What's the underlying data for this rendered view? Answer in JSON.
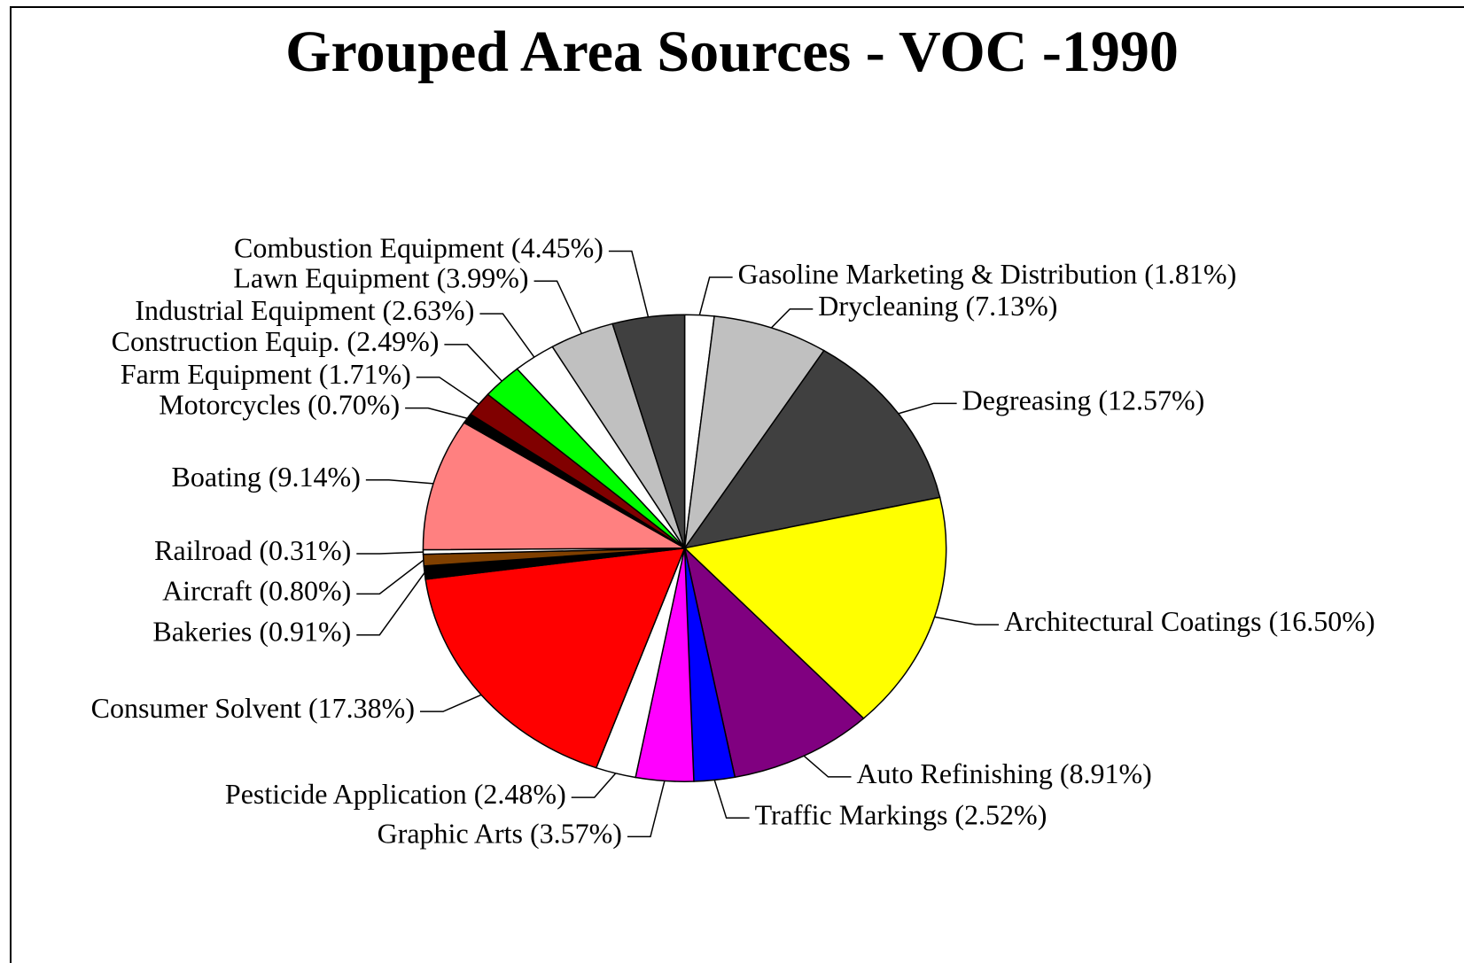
{
  "chart_data": {
    "type": "pie",
    "title": "Grouped Area Sources - VOC -1990",
    "categories": [
      "Gasoline Marketing & Distribution",
      "Drycleaning",
      "Degreasing",
      "Architectural Coatings",
      "Auto Refinishing",
      "Traffic Markings",
      "Graphic Arts",
      "Pesticide Application",
      "Consumer Solvent",
      "Bakeries",
      "Aircraft",
      "Railroad",
      "Boating",
      "Motorcycles",
      "Farm Equipment",
      "Construction Equip.",
      "Industrial Equipment",
      "Lawn Equipment",
      "Combustion Equipment"
    ],
    "values": [
      1.81,
      7.13,
      12.57,
      16.5,
      8.91,
      2.52,
      3.57,
      2.48,
      17.38,
      0.91,
      0.8,
      0.31,
      9.14,
      0.7,
      1.71,
      2.49,
      2.63,
      3.99,
      4.45
    ],
    "value_labels": [
      "(1.81%)",
      "(7.13%)",
      "(12.57%)",
      "(16.50%)",
      "(8.91%)",
      "(2.52%)",
      "(3.57%)",
      "(2.48%)",
      "(17.38%)",
      "(0.91%)",
      "(0.80%)",
      "(0.31%)",
      "(9.14%)",
      "(0.70%)",
      "(1.71%)",
      "(2.49%)",
      "(2.63%)",
      "(3.99%)",
      "(4.45%)"
    ],
    "colors": [
      "#ffffff",
      "#c0c0c0",
      "#404040",
      "#ffff00",
      "#800080",
      "#0000ff",
      "#ff00ff",
      "#ffffff",
      "#ff0000",
      "#000000",
      "#804000",
      "#ffffff",
      "#ff8080",
      "#000000",
      "#800000",
      "#00ff00",
      "#ffffff",
      "#c0c0c0",
      "#404040"
    ]
  }
}
